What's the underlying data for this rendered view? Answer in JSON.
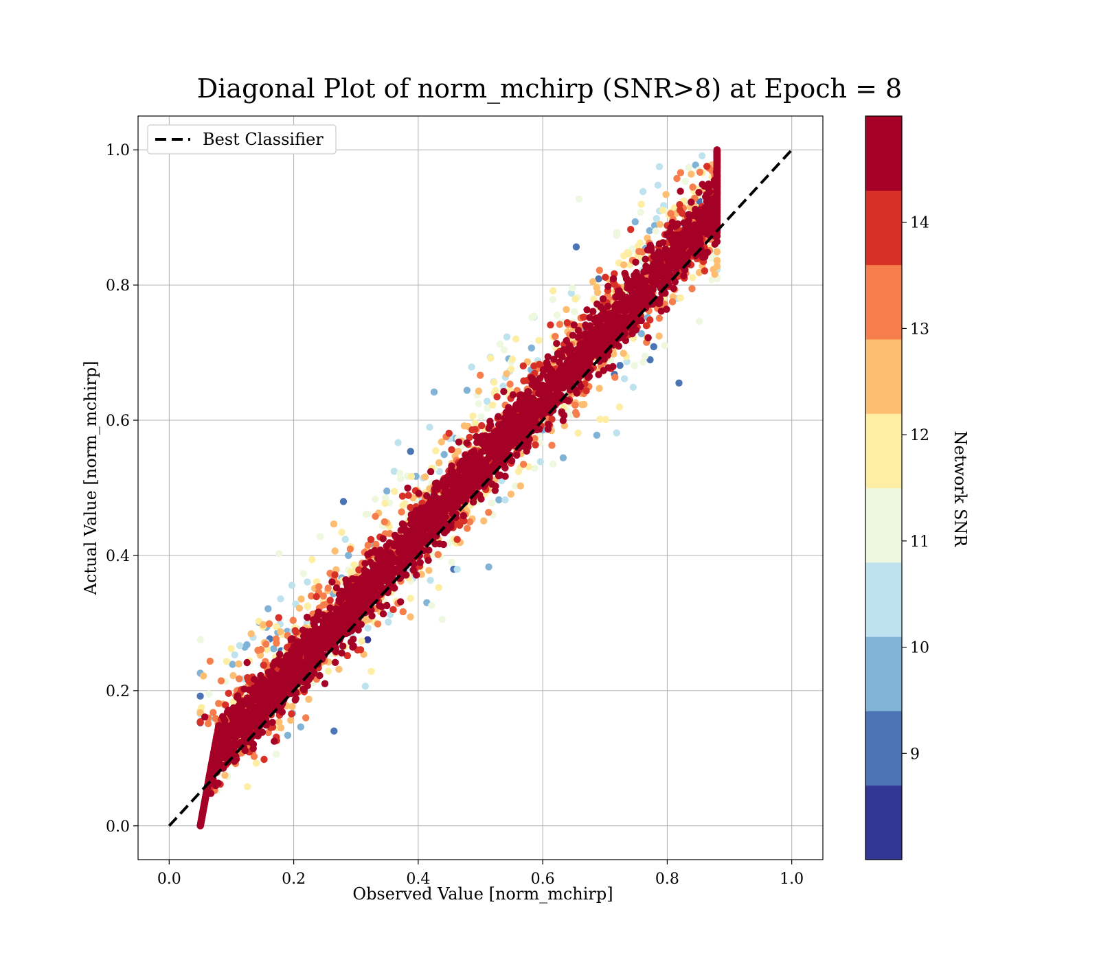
{
  "chart_data": {
    "type": "scatter",
    "title": "Diagonal Plot of norm_mchirp (SNR>8) at Epoch = 8",
    "xlabel": "Observed Value [norm_mchirp]",
    "ylabel": "Actual Value [norm_mchirp]",
    "xlim": [
      -0.05,
      1.05
    ],
    "ylim": [
      -0.05,
      1.05
    ],
    "x_ticks": [
      "0.0",
      "0.2",
      "0.4",
      "0.6",
      "0.8",
      "1.0"
    ],
    "y_ticks": [
      "0.0",
      "0.2",
      "0.4",
      "0.6",
      "0.8",
      "1.0"
    ],
    "x_tick_values": [
      0.0,
      0.2,
      0.4,
      0.6,
      0.8,
      1.0
    ],
    "y_tick_values": [
      0.0,
      0.2,
      0.4,
      0.6,
      0.8,
      1.0
    ],
    "grid": true,
    "legend": {
      "placement": "top-left",
      "entries": [
        "Best Classifier"
      ]
    },
    "reference_line": {
      "name": "Best Classifier",
      "style": "dashed",
      "color": "#000000",
      "x": [
        0.0,
        1.0
      ],
      "y": [
        0.0,
        1.0
      ]
    },
    "colorbar": {
      "label": "Network SNR",
      "range": [
        8,
        15
      ],
      "ticks": [
        "9",
        "10",
        "11",
        "12",
        "13",
        "14"
      ],
      "tick_values": [
        9,
        10,
        11,
        12,
        13,
        14
      ],
      "bins": [
        8,
        8.7,
        9.4,
        10.1,
        10.8,
        11.5,
        12.2,
        12.9,
        13.6,
        14.3,
        15
      ],
      "colors": [
        "#313695",
        "#4a74b4",
        "#81b3d7",
        "#bfe3ee",
        "#edf8df",
        "#fdeea3",
        "#fdbe71",
        "#f57e4c",
        "#d73027",
        "#a50026"
      ]
    },
    "point_summary": {
      "approx_count": 6000,
      "main_band_color": "#a50026",
      "x_range": [
        0.05,
        0.88
      ],
      "y_range": [
        0.0,
        1.0
      ],
      "description_of_trend": "points concentrated along the diagonal; low SNR points spread farther from it"
    }
  }
}
